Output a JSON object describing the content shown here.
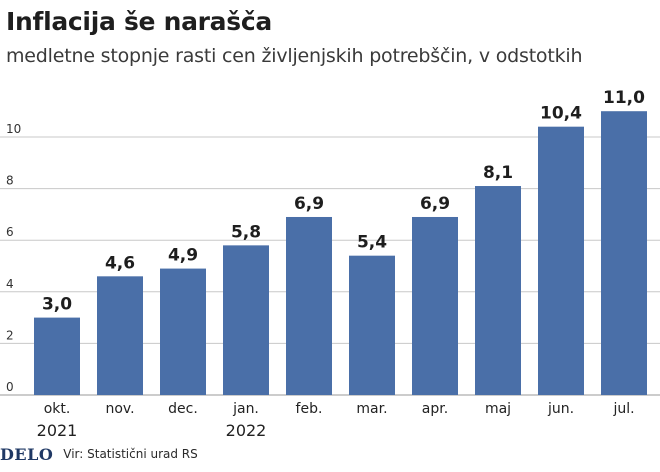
{
  "header": {
    "title": "Inflacija še narašča",
    "subtitle": "medletne stopnje rasti cen življenjskih potrebščin, v odstotkih"
  },
  "footer": {
    "logo_text": "DELO",
    "source": "Vir: Statistični urad RS"
  },
  "colors": {
    "bar": "#4a6fa8",
    "grid": "#c8c8c8",
    "text": "#1e1e1e"
  },
  "chart_data": {
    "type": "bar",
    "title": "Inflacija še narašča",
    "subtitle": "medletne stopnje rasti cen življenjskih potrebščin, v odstotkih",
    "categories": [
      "okt.",
      "nov.",
      "dec.",
      "jan.",
      "feb.",
      "mar.",
      "apr.",
      "maj",
      "jun.",
      "jul."
    ],
    "year_labels": [
      {
        "category_index": 0,
        "label": "2021"
      },
      {
        "category_index": 3,
        "label": "2022"
      }
    ],
    "values": [
      3.0,
      4.6,
      4.9,
      5.8,
      6.9,
      5.4,
      6.9,
      8.1,
      10.4,
      11.0
    ],
    "value_labels": [
      "3,0",
      "4,6",
      "4,9",
      "5,8",
      "6,9",
      "5,4",
      "6,9",
      "8,1",
      "10,4",
      "11,0"
    ],
    "yticks": [
      0,
      2,
      4,
      6,
      8,
      10
    ],
    "ylim": [
      0,
      12
    ],
    "grid": true,
    "xlabel": "",
    "ylabel": ""
  }
}
